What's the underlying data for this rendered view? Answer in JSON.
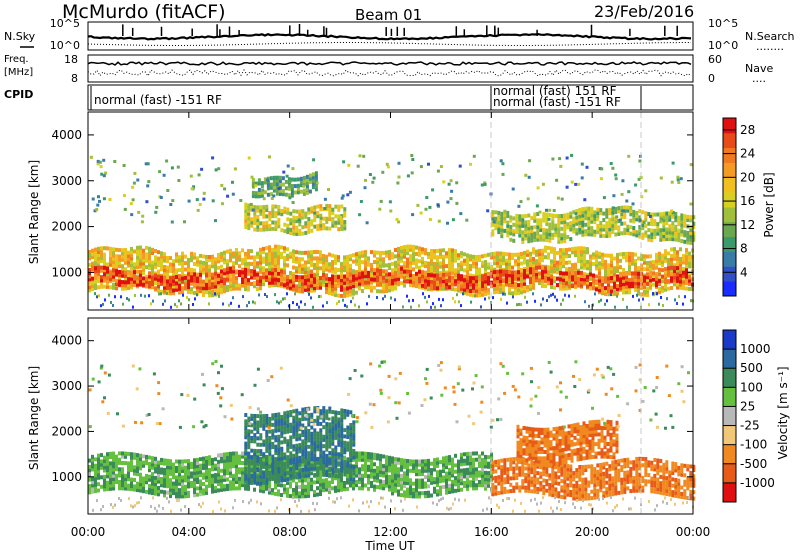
{
  "header": {
    "station": "McMurdo (fitACF)",
    "beam": "Beam 01",
    "date": "23/Feb/2016"
  },
  "strip": {
    "nsky_label": "N.Sky",
    "nsearch_label": "N.Search",
    "nsearch_dots": "........",
    "left_ticks": [
      "10^5",
      "10^0"
    ],
    "right_ticks": [
      "10^5",
      "10^0"
    ],
    "freq_label_1": "Freq.",
    "freq_label_2": "[MHz]",
    "freq_ticks": [
      "18",
      "8"
    ],
    "nave_label": "Nave",
    "nave_dots": "....",
    "nave_ticks": [
      "60",
      "0"
    ],
    "cpid_label": "CPID",
    "cpid_segments": [
      {
        "label": "normal (fast) -151 RF",
        "start": 0,
        "end": 16
      },
      {
        "label": "normal (fast) 151 RF",
        "start": 16,
        "end": 24
      },
      {
        "label": "normal (fast) -151 RF",
        "start": 16,
        "end": 22.4
      }
    ]
  },
  "chart_data": [
    {
      "type": "heatmap",
      "title": "",
      "quantity": "Power",
      "xlabel": "Time UT",
      "ylabel": "Slant Range [km]",
      "xlim_hours": [
        0,
        24
      ],
      "ylim_km": [
        180,
        4500
      ],
      "x_ticks": [
        "00:00",
        "04:00",
        "08:00",
        "12:00",
        "16:00",
        "20:00",
        "00:00"
      ],
      "y_ticks": [
        1000,
        2000,
        3000,
        4000
      ],
      "colorbar": {
        "label": "Power [dB]",
        "ticks": [
          4,
          8,
          12,
          16,
          20,
          24,
          28
        ],
        "range": [
          0,
          30
        ],
        "colors": [
          "#1a2cff",
          "#3050c8",
          "#3a7ca8",
          "#3a9a6a",
          "#6aa850",
          "#a0c03c",
          "#d8d020",
          "#f0c020",
          "#f59a25",
          "#f07a20",
          "#e84a1a",
          "#e01010"
        ]
      },
      "echo_bands": [
        {
          "t_start": 0,
          "t_end": 24,
          "r_start": 650,
          "r_end": 1550,
          "level": 18
        },
        {
          "t_start": 0,
          "t_end": 24,
          "r_start": 750,
          "r_end": 1100,
          "level": 26
        },
        {
          "t_start": 6.2,
          "t_end": 10.2,
          "r_start": 2000,
          "r_end": 2500,
          "level": 16
        },
        {
          "t_start": 6.5,
          "t_end": 9,
          "r_start": 2800,
          "r_end": 3200,
          "level": 10
        },
        {
          "t_start": 16,
          "t_end": 24,
          "r_start": 1800,
          "r_end": 2400,
          "level": 14
        }
      ]
    },
    {
      "type": "heatmap",
      "title": "",
      "quantity": "Velocity",
      "xlabel": "Time UT",
      "ylabel": "Slant Range [km]",
      "xlim_hours": [
        0,
        24
      ],
      "ylim_km": [
        180,
        4500
      ],
      "x_ticks": [
        "00:00",
        "04:00",
        "08:00",
        "12:00",
        "16:00",
        "20:00",
        "00:00"
      ],
      "y_ticks": [
        1000,
        2000,
        3000,
        4000
      ],
      "colorbar": {
        "label": "Velocity [m s⁻¹]",
        "ticks": [
          1000,
          500,
          100,
          25,
          -25,
          -100,
          -500,
          -1000
        ],
        "colors": [
          "#1a3ac8",
          "#2a6aa0",
          "#3a8a5a",
          "#66c040",
          "#b8b8b8",
          "#f0c878",
          "#f08a20",
          "#e85a18",
          "#e01010"
        ]
      },
      "echo_bands": [
        {
          "t_start": 0,
          "t_end": 16,
          "r_start": 700,
          "r_end": 1500,
          "velocity": 100
        },
        {
          "t_start": 6.2,
          "t_end": 10.5,
          "r_start": 1000,
          "r_end": 2500,
          "velocity": 500
        },
        {
          "t_start": 16,
          "t_end": 24,
          "r_start": 650,
          "r_end": 1400,
          "velocity": -500
        },
        {
          "t_start": 17,
          "t_end": 21,
          "r_start": 1400,
          "r_end": 2200,
          "velocity": -500
        }
      ]
    }
  ],
  "colors": {
    "axis": "#000000",
    "dashed_marker": "#c8c8c8"
  }
}
